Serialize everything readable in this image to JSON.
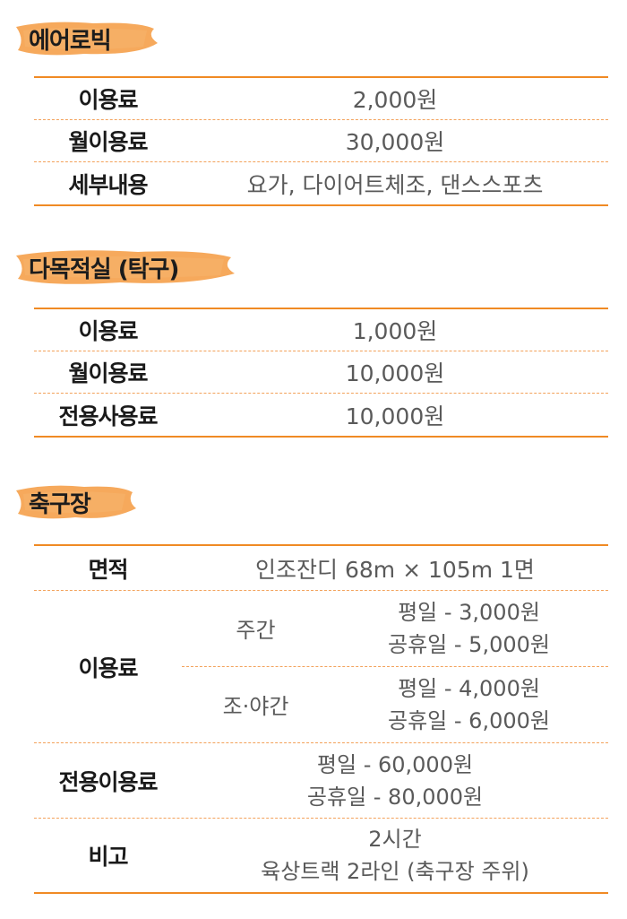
{
  "aerobic": {
    "title": "에어로빅",
    "rows": [
      {
        "label": "이용료",
        "value": "2,000원"
      },
      {
        "label": "월이용료",
        "value": "30,000원"
      },
      {
        "label": "세부내용",
        "value": "요가, 다이어트체조, 댄스스포츠"
      }
    ]
  },
  "multipurpose": {
    "title": "다목적실 (탁구)",
    "rows": [
      {
        "label": "이용료",
        "value": "1,000원"
      },
      {
        "label": "월이용료",
        "value": "10,000원"
      },
      {
        "label": "전용사용료",
        "value": "10,000원"
      }
    ]
  },
  "soccer": {
    "title": "축구장",
    "area_label": "면적",
    "area_value": "인조잔디 68m × 105m 1면",
    "fee_label": "이용료",
    "fee_groups": [
      {
        "period": "주간",
        "weekday": "평일 - 3,000원",
        "holiday": "공휴일 - 5,000원"
      },
      {
        "period": "조·야간",
        "weekday": "평일 - 4,000원",
        "holiday": "공휴일 - 6,000원"
      }
    ],
    "exclusive_label": "전용이용료",
    "exclusive_weekday": "평일 - 60,000원",
    "exclusive_holiday": "공휴일 - 80,000원",
    "note_label": "비고",
    "note_line1": "2시간",
    "note_line2": "육상트랙 2라인 (축구장 주위)"
  },
  "colors": {
    "accent": "#f08a24",
    "brush": "#f5a04a"
  }
}
